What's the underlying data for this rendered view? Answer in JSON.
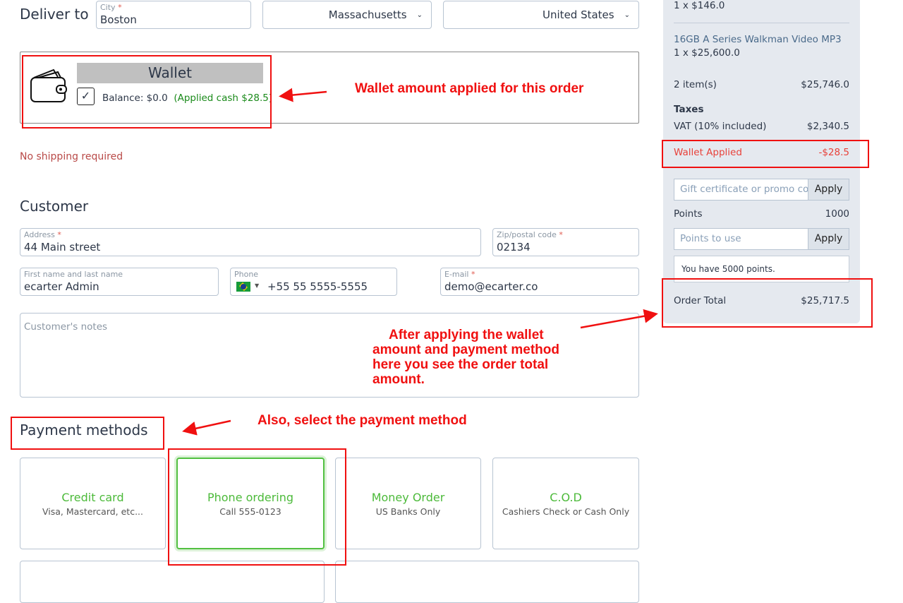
{
  "delivery": {
    "heading": "Deliver to",
    "city_label": "City",
    "city_value": "Boston",
    "state_value": "Massachusetts",
    "country_value": "United States"
  },
  "wallet": {
    "title": "Wallet",
    "checked": true,
    "balance": "Balance: $0.0",
    "applied": "(Applied cash $28.5)",
    "icon": "wallet-icon"
  },
  "shipping_note": "No shipping required",
  "customer": {
    "heading": "Customer",
    "address_label": "Address",
    "address_value": "44 Main street",
    "zip_label": "Zip/postal code",
    "zip_value": "02134",
    "name_label": "First name and last name",
    "name_value": "ecarter Admin",
    "phone_label": "Phone",
    "phone_value": "+55 55 5555-5555",
    "phone_flag": "brazil-flag",
    "email_label": "E-mail",
    "email_value": "demo@ecarter.co",
    "notes_placeholder": "Customer's notes",
    "required_mark": "*"
  },
  "payment": {
    "heading": "Payment methods",
    "methods": [
      {
        "title": "Credit card",
        "subtitle": "Visa, Mastercard, etc..."
      },
      {
        "title": "Phone ordering",
        "subtitle": "Call 555-0123",
        "selected": true
      },
      {
        "title": "Money Order",
        "subtitle": "US Banks Only"
      },
      {
        "title": "C.O.D",
        "subtitle": "Cashiers Check or Cash Only"
      }
    ]
  },
  "summary": {
    "item1_qty": "1 x $146.0",
    "item2_name": "16GB A Series Walkman Video MP3",
    "item2_qty": "1 x $25,600.0",
    "items_label": "2 item(s)",
    "items_total": "$25,746.0",
    "taxes_label": "Taxes",
    "vat_label": "VAT (10% included)",
    "vat_value": "$2,340.5",
    "wallet_label": "Wallet Applied",
    "wallet_value": "-$28.5",
    "promo_placeholder": "Gift certificate or promo code",
    "apply": "Apply",
    "points_label": "Points",
    "points_value": "1000",
    "points_placeholder": "Points to use",
    "points_tip": "You have 5000 points.",
    "total_label": "Order Total",
    "total_value": "$25,717.5"
  },
  "annotations": {
    "wallet": "Wallet amount applied for this order",
    "total": [
      "After applying the wallet",
      "amount and payment method",
      "here you see the order total",
      "amount."
    ],
    "payment": "Also, select the payment method"
  },
  "colors": {
    "accent_green": "#4cba3a",
    "annotation_red": "#f01010",
    "wallet_red": "#e8413a",
    "panel_bg": "#e5e9ef"
  }
}
